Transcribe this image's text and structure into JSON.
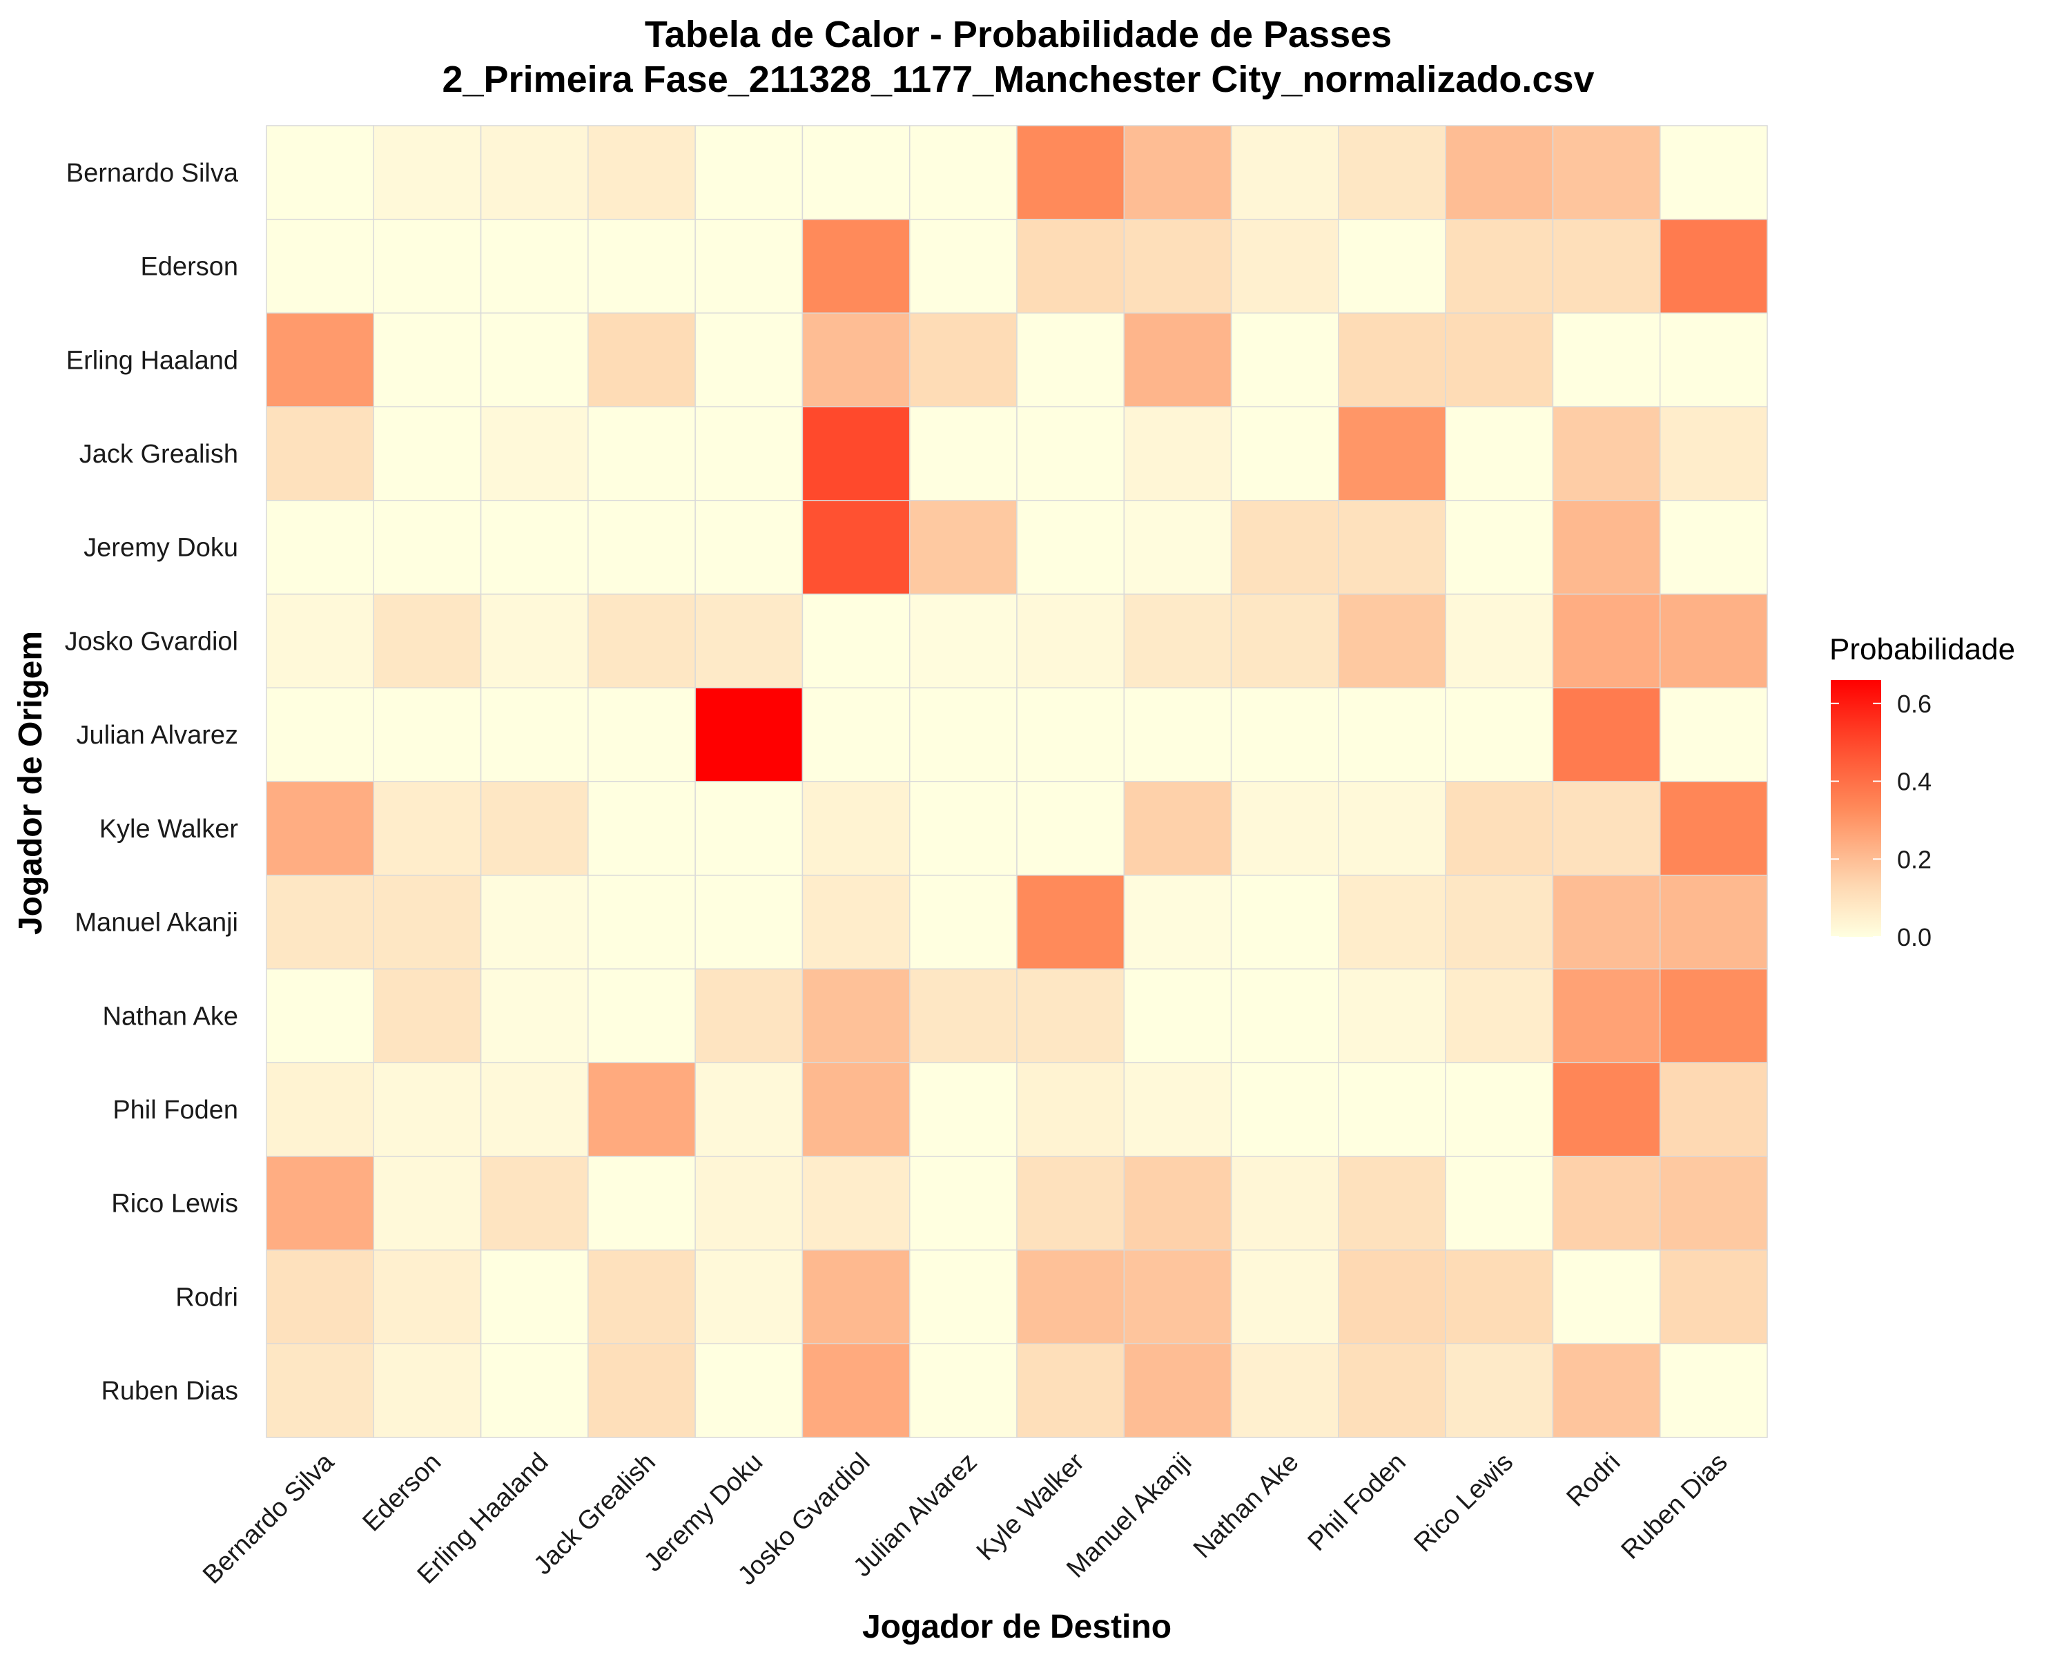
{
  "chart_data": {
    "type": "heatmap",
    "title": "Tabela de Calor - Probabilidade de Passes",
    "subtitle": "2_Primeira Fase_211328_1177_Manchester City_normalizado.csv",
    "xlabel": "Jogador de Destino",
    "ylabel": "Jogador de Origem",
    "x_categories": [
      "Bernardo Silva",
      "Ederson",
      "Erling Haaland",
      "Jack Grealish",
      "Jeremy Doku",
      "Josko Gvardiol",
      "Julian Alvarez",
      "Kyle Walker",
      "Manuel Akanji",
      "Nathan Ake",
      "Phil Foden",
      "Rico Lewis",
      "Rodri",
      "Ruben Dias"
    ],
    "y_categories": [
      "Bernardo Silva",
      "Ederson",
      "Erling Haaland",
      "Jack Grealish",
      "Jeremy Doku",
      "Josko Gvardiol",
      "Julian Alvarez",
      "Kyle Walker",
      "Manuel Akanji",
      "Nathan Ake",
      "Phil Foden",
      "Rico Lewis",
      "Rodri",
      "Ruben Dias"
    ],
    "values": [
      [
        0.0,
        0.02,
        0.03,
        0.06,
        0.0,
        0.0,
        0.0,
        0.33,
        0.2,
        0.03,
        0.08,
        0.2,
        0.18,
        0.0
      ],
      [
        0.0,
        0.0,
        0.0,
        0.0,
        0.0,
        0.33,
        0.0,
        0.12,
        0.11,
        0.05,
        0.0,
        0.11,
        0.11,
        0.37
      ],
      [
        0.29,
        0.0,
        0.0,
        0.12,
        0.0,
        0.2,
        0.12,
        0.0,
        0.22,
        0.0,
        0.12,
        0.12,
        0.0,
        0.0
      ],
      [
        0.1,
        0.0,
        0.02,
        0.0,
        0.0,
        0.5,
        0.0,
        0.0,
        0.03,
        0.0,
        0.3,
        0.0,
        0.16,
        0.06
      ],
      [
        0.0,
        0.0,
        0.0,
        0.0,
        0.0,
        0.48,
        0.17,
        0.0,
        0.01,
        0.1,
        0.1,
        0.0,
        0.21,
        0.0
      ],
      [
        0.02,
        0.08,
        0.02,
        0.08,
        0.07,
        0.0,
        0.01,
        0.02,
        0.07,
        0.08,
        0.17,
        0.02,
        0.24,
        0.23
      ],
      [
        0.0,
        0.0,
        0.0,
        0.0,
        0.66,
        0.0,
        0.0,
        0.0,
        0.0,
        0.0,
        0.0,
        0.0,
        0.37,
        0.0
      ],
      [
        0.24,
        0.06,
        0.08,
        0.0,
        0.0,
        0.04,
        0.0,
        0.0,
        0.15,
        0.02,
        0.02,
        0.11,
        0.1,
        0.34
      ],
      [
        0.08,
        0.08,
        0.01,
        0.0,
        0.0,
        0.06,
        0.0,
        0.33,
        0.01,
        0.0,
        0.06,
        0.08,
        0.2,
        0.21
      ],
      [
        0.0,
        0.09,
        0.01,
        0.0,
        0.09,
        0.19,
        0.08,
        0.08,
        0.0,
        0.0,
        0.02,
        0.06,
        0.27,
        0.32
      ],
      [
        0.04,
        0.02,
        0.02,
        0.25,
        0.02,
        0.21,
        0.0,
        0.04,
        0.02,
        0.0,
        0.0,
        0.0,
        0.34,
        0.13
      ],
      [
        0.24,
        0.02,
        0.09,
        0.0,
        0.03,
        0.06,
        0.0,
        0.1,
        0.15,
        0.03,
        0.1,
        0.0,
        0.15,
        0.17
      ],
      [
        0.1,
        0.05,
        0.0,
        0.1,
        0.02,
        0.21,
        0.0,
        0.19,
        0.18,
        0.02,
        0.13,
        0.12,
        0.0,
        0.13
      ],
      [
        0.08,
        0.03,
        0.0,
        0.11,
        0.0,
        0.25,
        0.0,
        0.11,
        0.2,
        0.05,
        0.11,
        0.07,
        0.18,
        0.0
      ]
    ],
    "legend": {
      "title": "Probabilidade",
      "ticks": [
        "0.0",
        "0.2",
        "0.4",
        "0.6"
      ],
      "tick_values": [
        0,
        0.2,
        0.4,
        0.6
      ],
      "range": [
        0,
        0.66
      ],
      "low_color": "#FFFFE0",
      "high_color": "#FF0000",
      "placement": "right"
    },
    "grid_color": "#D9D9D9"
  }
}
